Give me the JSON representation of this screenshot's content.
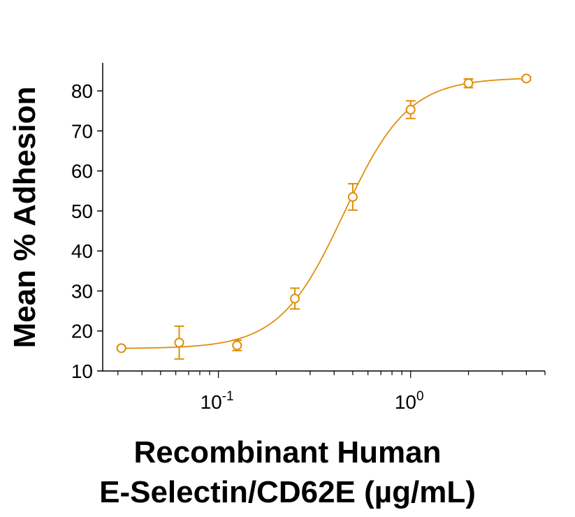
{
  "chart_data": {
    "type": "scatter",
    "title": "",
    "ylabel": "Mean % Adhesion",
    "xlabel_lines": [
      "Recombinant Human",
      "E-Selectin/CD62E (µg/mL)"
    ],
    "xscale": "log",
    "xlim": [
      0.025,
      5
    ],
    "ylim": [
      10,
      87
    ],
    "yticks": [
      10,
      20,
      30,
      40,
      50,
      60,
      70,
      80
    ],
    "xticks": [
      {
        "value": 0.1,
        "base": "10",
        "exp": "-1"
      },
      {
        "value": 1,
        "base": "10",
        "exp": "0"
      }
    ],
    "grid": false,
    "color": "#E08E0B",
    "series": [
      {
        "x": [
          0.03125,
          0.0625,
          0.125,
          0.25,
          0.5,
          1,
          2,
          4
        ],
        "y": [
          15.7,
          17.1,
          16.4,
          28.1,
          53.5,
          75.3,
          81.9,
          83.1
        ],
        "yerr": [
          0.3,
          4.1,
          1.3,
          2.6,
          3.3,
          2.2,
          1.1,
          0.4
        ]
      }
    ],
    "fit_curve": {
      "bottom": 15.6,
      "top": 83.3,
      "ec50": 0.45,
      "hill": 2.6
    }
  }
}
